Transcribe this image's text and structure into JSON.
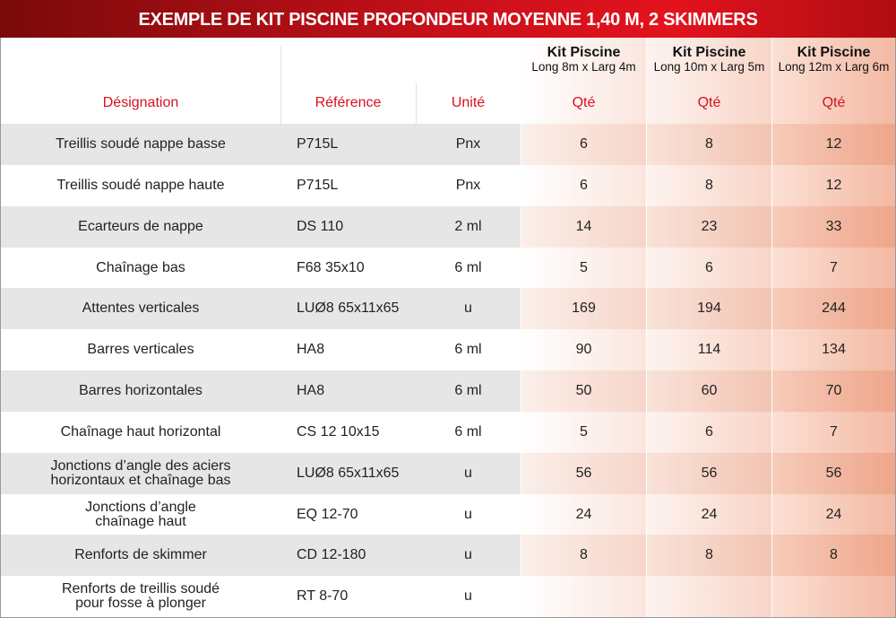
{
  "title": "EXEMPLE DE KIT PISCINE PROFONDEUR MOYENNE 1,40 M, 2 SKIMMERS",
  "table": {
    "kits": [
      {
        "name": "Kit Piscine",
        "size": "Long 8m x Larg 4m"
      },
      {
        "name": "Kit Piscine",
        "size": "Long 10m x Larg 5m"
      },
      {
        "name": "Kit Piscine",
        "size": "Long 12m x Larg 6m"
      }
    ],
    "headers": [
      "Désignation",
      "Référence",
      "Unité",
      "Qté",
      "Qté",
      "Qté"
    ],
    "rows": [
      [
        "Treillis soudé nappe basse",
        "P715L",
        "Pnx",
        "6",
        "8",
        "12"
      ],
      [
        "Treillis soudé nappe haute",
        "P715L",
        "Pnx",
        "6",
        "8",
        "12"
      ],
      [
        "Ecarteurs de nappe",
        "DS 110",
        "2 ml",
        "14",
        "23",
        "33"
      ],
      [
        "Chaînage bas",
        "F68 35x10",
        "6 ml",
        "5",
        "6",
        "7"
      ],
      [
        "Attentes verticales",
        "LUØ8 65x11x65",
        "u",
        "169",
        "194",
        "244"
      ],
      [
        "Barres verticales",
        "HA8",
        "6 ml",
        "90",
        "114",
        "134"
      ],
      [
        "Barres horizontales",
        "HA8",
        "6 ml",
        "50",
        "60",
        "70"
      ],
      [
        "Chaînage haut horizontal",
        "CS 12 10x15",
        "6 ml",
        "5",
        "6",
        "7"
      ],
      [
        "Jonctions d’angle des aciers\nhorizontaux et chaînage bas",
        "LUØ8 65x11x65",
        "u",
        "56",
        "56",
        "56"
      ],
      [
        "Jonctions d’angle\nchaînage haut",
        "EQ 12-70",
        "u",
        "24",
        "24",
        "24"
      ],
      [
        "Renforts de skimmer",
        "CD 12-180",
        "u",
        "8",
        "8",
        "8"
      ],
      [
        "Renforts de treillis soudé\npour fosse à plonger",
        "RT 8-70",
        "u"
      ]
    ]
  }
}
